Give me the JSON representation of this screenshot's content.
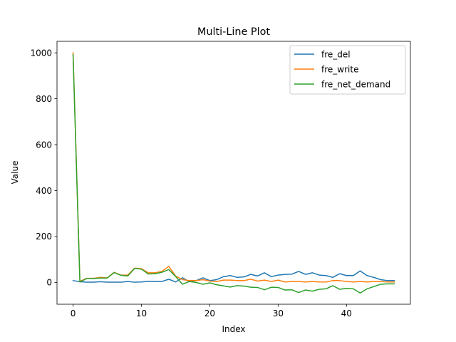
{
  "chart_data": {
    "type": "line",
    "title": "Multi-Line Plot",
    "xlabel": "Index",
    "ylabel": "Value",
    "xlim": [
      -2.35,
      49.35
    ],
    "ylim": [
      -95,
      1050
    ],
    "xticks": [
      0,
      10,
      20,
      30,
      40
    ],
    "yticks": [
      0,
      200,
      400,
      600,
      800,
      1000
    ],
    "grid": false,
    "legend_position": "top-right",
    "x": [
      0,
      1,
      2,
      3,
      4,
      5,
      6,
      7,
      8,
      9,
      10,
      11,
      12,
      13,
      14,
      15,
      16,
      17,
      18,
      19,
      20,
      21,
      22,
      23,
      24,
      25,
      26,
      27,
      28,
      29,
      30,
      31,
      32,
      33,
      34,
      35,
      36,
      37,
      38,
      39,
      40,
      41,
      42,
      43,
      44,
      45,
      46,
      47
    ],
    "series": [
      {
        "name": "fre_del",
        "color": "#1f77b4",
        "values": [
          8,
          3,
          1,
          1,
          3,
          1,
          1,
          1,
          4,
          1,
          2,
          5,
          4,
          4,
          14,
          2,
          20,
          4,
          8,
          20,
          8,
          12,
          25,
          30,
          22,
          24,
          35,
          28,
          42,
          25,
          32,
          35,
          36,
          48,
          35,
          42,
          32,
          30,
          22,
          38,
          30,
          30,
          50,
          30,
          22,
          12,
          8,
          8
        ]
      },
      {
        "name": "fre_write",
        "color": "#ff7f0e",
        "values": [
          1000,
          5,
          18,
          18,
          22,
          20,
          44,
          32,
          32,
          62,
          60,
          42,
          42,
          48,
          70,
          28,
          12,
          8,
          8,
          12,
          6,
          4,
          10,
          10,
          8,
          8,
          14,
          6,
          10,
          4,
          10,
          2,
          4,
          4,
          2,
          4,
          2,
          2,
          8,
          8,
          4,
          2,
          4,
          2,
          4,
          4,
          2,
          2
        ]
      },
      {
        "name": "fre_net_demand",
        "color": "#2ca02c",
        "values": [
          992,
          2,
          17,
          17,
          19,
          19,
          43,
          31,
          28,
          61,
          58,
          37,
          38,
          44,
          56,
          26,
          -8,
          4,
          0,
          -8,
          -2,
          -10,
          -15,
          -20,
          -14,
          -16,
          -21,
          -22,
          -32,
          -21,
          -22,
          -33,
          -32,
          -44,
          -33,
          -38,
          -30,
          -28,
          -14,
          -30,
          -26,
          -28,
          -46,
          -28,
          -18,
          -8,
          -6,
          -6
        ]
      }
    ]
  }
}
